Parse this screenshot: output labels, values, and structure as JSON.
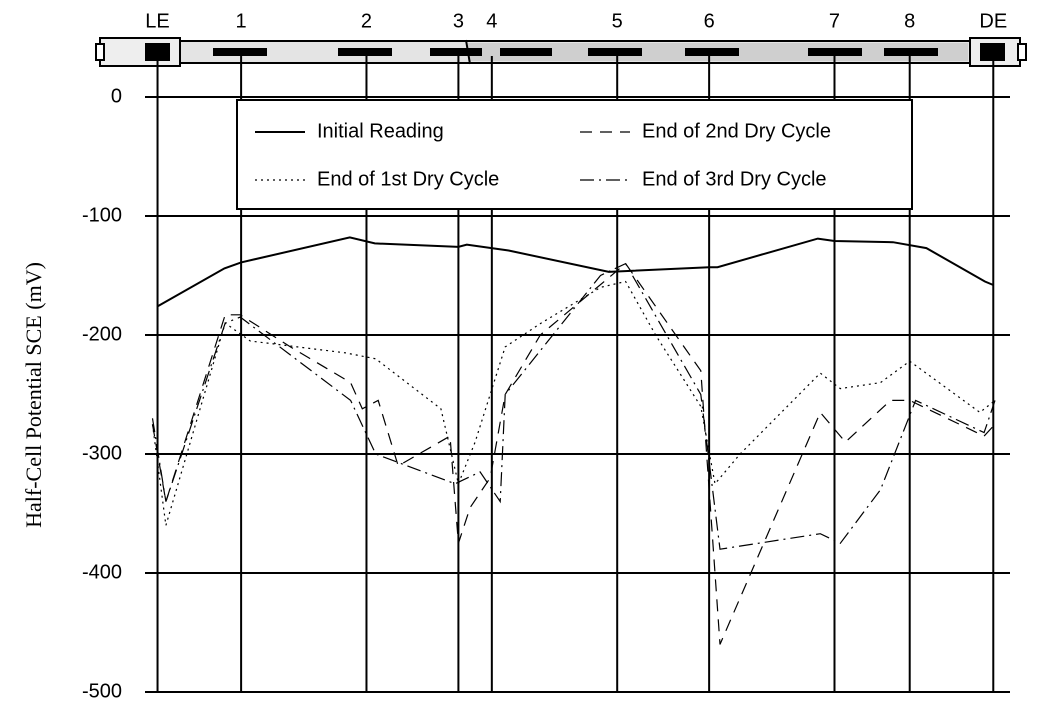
{
  "chart_data": {
    "type": "line",
    "y_label": "Half-Cell Potential SCE (mV)",
    "xlim": [
      -1.5,
      102
    ],
    "xticks": [
      {
        "value": 0,
        "label": "LE"
      },
      {
        "value": 10,
        "label": "1"
      },
      {
        "value": 25,
        "label": "2"
      },
      {
        "value": 36,
        "label": "3"
      },
      {
        "value": 40,
        "label": "4"
      },
      {
        "value": 55,
        "label": "5"
      },
      {
        "value": 66,
        "label": "6"
      },
      {
        "value": 81,
        "label": "7"
      },
      {
        "value": 90,
        "label": "8"
      },
      {
        "value": 100,
        "label": "DE"
      }
    ],
    "ylim": [
      -500,
      0
    ],
    "yticks": [
      0,
      -100,
      -200,
      -300,
      -400,
      -500
    ],
    "grid": true,
    "legend": "top",
    "series": [
      {
        "name": "Initial Reading",
        "color": "#000000",
        "dash": "solid",
        "x": [
          0,
          8,
          10,
          23,
          26,
          36,
          37,
          42,
          54,
          66,
          67,
          79,
          81,
          88,
          92,
          99,
          100
        ],
        "values": [
          -176,
          -144,
          -139,
          -118,
          -123,
          -126,
          -124,
          -129,
          -147,
          -143,
          -143,
          -119,
          -121,
          -122,
          -127,
          -155,
          -158
        ]
      },
      {
        "name": "End of 1st Dry Cycle",
        "color": "#000000",
        "dash": "dotted",
        "x": [
          -0.6,
          1,
          8.1,
          11.1,
          22.5,
          26.1,
          33.9,
          36,
          38,
          41.6,
          45.9,
          53,
          56,
          59.6,
          65,
          66.7,
          69.7,
          79.3,
          81.7,
          86.5,
          90,
          98.4,
          100.2
        ],
        "values": [
          -275,
          -360,
          -190,
          -205,
          -215,
          -220,
          -262,
          -325,
          -290,
          -210,
          -190,
          -160,
          -155,
          -200,
          -260,
          -325,
          -300,
          -232,
          -245,
          -240,
          -222,
          -265,
          -255
        ]
      },
      {
        "name": "End of 2nd Dry Cycle",
        "color": "#000000",
        "dash": "dashed",
        "x": [
          -0.6,
          1,
          8.1,
          9.9,
          15.9,
          23.1,
          24.5,
          26.4,
          28.8,
          35,
          36,
          37.4,
          39.8,
          41.6,
          45.8,
          56,
          65,
          67.3,
          79.3,
          82.3,
          87.7,
          90,
          98.9,
          100.2
        ],
        "values": [
          -275,
          -340,
          -183,
          -183,
          -210,
          -240,
          -262,
          -255,
          -310,
          -285,
          -375,
          -345,
          -320,
          -250,
          -200,
          -140,
          -230,
          -460,
          -265,
          -290,
          -255,
          -255,
          -285,
          -275
        ]
      },
      {
        "name": "End of 3rd Dry Cycle",
        "color": "#000000",
        "dash": "dashdot",
        "x": [
          -0.6,
          1,
          8.1,
          9.9,
          23.1,
          26.1,
          35.6,
          38.6,
          41,
          41.6,
          53,
          56,
          65,
          67.3,
          79.3,
          81.7,
          86.5,
          90.7,
          98.9,
          100.2
        ],
        "values": [
          -270,
          -340,
          -190,
          -185,
          -255,
          -300,
          -325,
          -315,
          -340,
          -250,
          -150,
          -140,
          -250,
          -380,
          -367,
          -375,
          -330,
          -255,
          -282,
          -255
        ]
      }
    ]
  }
}
